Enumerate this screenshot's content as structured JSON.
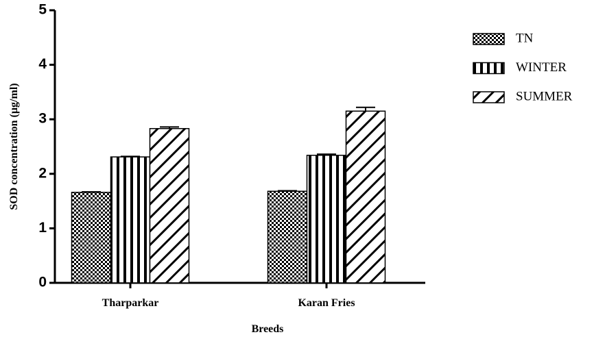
{
  "chart_data": {
    "type": "bar",
    "x_label": "Breeds",
    "y_label": "SOD concentration (µg/ml)",
    "categories": [
      "Tharparkar",
      "Karan Fries"
    ],
    "series": [
      {
        "name": "TN",
        "color": "#000000",
        "pattern": "checker",
        "values": [
          1.66,
          1.68
        ],
        "errors": [
          0.01,
          0.01
        ]
      },
      {
        "name": "WINTER",
        "color": "#000000",
        "pattern": "vertical",
        "values": [
          2.31,
          2.34
        ],
        "errors": [
          0.01,
          0.02
        ]
      },
      {
        "name": "SUMMER",
        "color": "#000000",
        "pattern": "diagonal",
        "values": [
          2.83,
          3.15
        ],
        "errors": [
          0.03,
          0.07
        ]
      }
    ],
    "ylim": [
      0,
      5
    ],
    "yticks": [
      0,
      1,
      2,
      3,
      4,
      5
    ]
  }
}
